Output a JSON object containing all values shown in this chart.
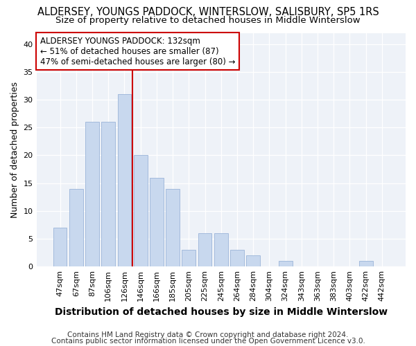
{
  "title": "ALDERSEY, YOUNGS PADDOCK, WINTERSLOW, SALISBURY, SP5 1RS",
  "subtitle": "Size of property relative to detached houses in Middle Winterslow",
  "xlabel": "Distribution of detached houses by size in Middle Winterslow",
  "ylabel": "Number of detached properties",
  "categories": [
    "47sqm",
    "67sqm",
    "87sqm",
    "106sqm",
    "126sqm",
    "146sqm",
    "166sqm",
    "185sqm",
    "205sqm",
    "225sqm",
    "245sqm",
    "264sqm",
    "284sqm",
    "304sqm",
    "324sqm",
    "343sqm",
    "363sqm",
    "383sqm",
    "403sqm",
    "422sqm",
    "442sqm"
  ],
  "values": [
    7,
    14,
    26,
    26,
    31,
    20,
    16,
    14,
    3,
    6,
    6,
    3,
    2,
    0,
    1,
    0,
    0,
    0,
    0,
    1,
    0
  ],
  "bar_color": "#c8d8ee",
  "bar_edge_color": "#9ab4d8",
  "vline_x": 4.5,
  "vline_color": "#cc0000",
  "ylim": [
    0,
    42
  ],
  "yticks": [
    0,
    5,
    10,
    15,
    20,
    25,
    30,
    35,
    40
  ],
  "annotation_text": "ALDERSEY YOUNGS PADDOCK: 132sqm\n← 51% of detached houses are smaller (87)\n47% of semi-detached houses are larger (80) →",
  "annotation_box_color": "#ffffff",
  "annotation_box_edge": "#cc0000",
  "footer1": "Contains HM Land Registry data © Crown copyright and database right 2024.",
  "footer2": "Contains public sector information licensed under the Open Government Licence v3.0.",
  "bg_color": "#ffffff",
  "plot_bg_color": "#eef2f8",
  "grid_color": "#ffffff",
  "title_fontsize": 10.5,
  "subtitle_fontsize": 9.5,
  "xlabel_fontsize": 10,
  "ylabel_fontsize": 9,
  "tick_fontsize": 8,
  "annotation_fontsize": 8.5,
  "footer_fontsize": 7.5
}
